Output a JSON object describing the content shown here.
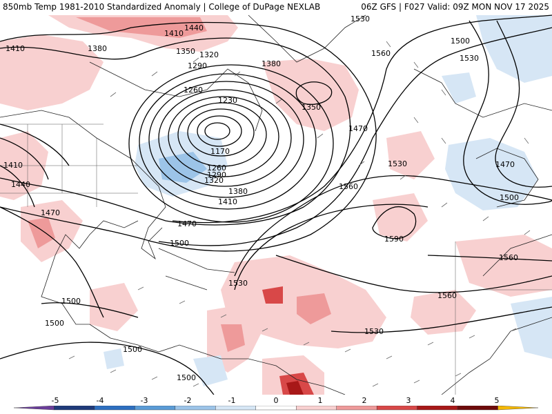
{
  "header": {
    "left": "850mb Temp 1981-2010 Standardized Anomaly | College of DuPage NEXLAB",
    "right": "06Z GFS | F027 Valid: 09Z MON NOV 17 2025"
  },
  "colorbar": {
    "ticks": [
      "-5",
      "-4",
      "-3",
      "-2",
      "-1",
      "0",
      "1",
      "2",
      "3",
      "4",
      "5"
    ],
    "colors": [
      "#6a3d9a",
      "#1f3a7a",
      "#2d6fc0",
      "#5a9bd6",
      "#9cc4e8",
      "#d6e6f5",
      "#ffffff",
      "#f8d0d0",
      "#ee9a9a",
      "#d84848",
      "#a81818",
      "#6e0a0a",
      "#f5b800"
    ]
  },
  "contours": {
    "labels": [
      "1410",
      "1380",
      "1440",
      "1410",
      "1350",
      "1320",
      "1290",
      "1380",
      "1530",
      "1560",
      "1500",
      "1530",
      "1260",
      "1230",
      "1350",
      "1470",
      "1170",
      "1260",
      "1290",
      "1320",
      "1380",
      "1410",
      "1470",
      "1500",
      "1530",
      "1560",
      "1590",
      "1470",
      "1500",
      "1560",
      "1560",
      "1530",
      "1530",
      "1500",
      "1500",
      "1500",
      "1500",
      "1410",
      "1440",
      "1470"
    ]
  }
}
